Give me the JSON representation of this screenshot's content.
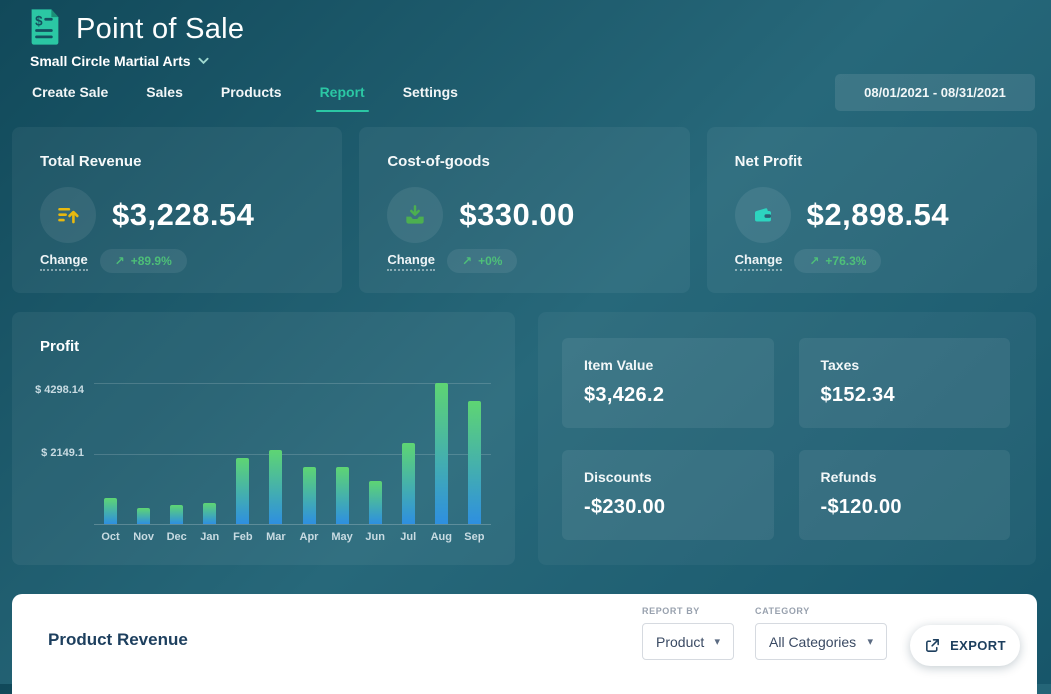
{
  "app": {
    "title": "Point of Sale",
    "organization": "Small Circle Martial Arts",
    "date_range": "08/01/2021 - 08/31/2021",
    "tabs": [
      {
        "label": "Create Sale",
        "active": false
      },
      {
        "label": "Sales",
        "active": false
      },
      {
        "label": "Products",
        "active": false
      },
      {
        "label": "Report",
        "active": true
      },
      {
        "label": "Settings",
        "active": false
      }
    ]
  },
  "metrics": [
    {
      "title": "Total Revenue",
      "value": "$3,228.54",
      "change_label": "Change",
      "trend_arrow": "↗",
      "change_badge": "+89.9%",
      "icon": "revenue-up-icon",
      "icon_color": "#e8b90f"
    },
    {
      "title": "Cost-of-goods",
      "value": "$330.00",
      "change_label": "Change",
      "trend_arrow": "↗",
      "change_badge": "+0%",
      "icon": "goods-in-icon",
      "icon_color": "#4caf50"
    },
    {
      "title": "Net Profit",
      "value": "$2,898.54",
      "change_label": "Change",
      "trend_arrow": "↗",
      "change_badge": "+76.3%",
      "icon": "wallet-icon",
      "icon_color": "#2dd4bf"
    }
  ],
  "chart_data": {
    "type": "bar",
    "title": "Profit",
    "categories": [
      "Oct",
      "Nov",
      "Dec",
      "Jan",
      "Feb",
      "Mar",
      "Apr",
      "May",
      "Jun",
      "Jul",
      "Aug",
      "Sep"
    ],
    "values": [
      780,
      480,
      570,
      630,
      2010,
      2250,
      1740,
      1740,
      1320,
      2460,
      4298.14,
      3750
    ],
    "y_tick_labels": [
      "$ 4298.14",
      "$ 2149.1"
    ],
    "y_tick_values": [
      4298.14,
      2149.1
    ],
    "ylim": [
      0,
      4298.14
    ],
    "grid": true,
    "legend": false,
    "bar_gradient_top": "#5ed573",
    "bar_gradient_bottom": "#2e8fe0"
  },
  "summary": [
    {
      "label": "Item Value",
      "value": "$3,426.2"
    },
    {
      "label": "Taxes",
      "value": "$152.34"
    },
    {
      "label": "Discounts",
      "value": "-$230.00"
    },
    {
      "label": "Refunds",
      "value": "-$120.00"
    }
  ],
  "product_revenue": {
    "title": "Product Revenue",
    "report_by": {
      "label": "REPORT BY",
      "value": "Product"
    },
    "category": {
      "label": "CATEGORY",
      "value": "All Categories"
    },
    "export_label": "EXPORT",
    "caret": "▾"
  },
  "colors": {
    "accent_teal": "#2bc7a4",
    "badge_green": "#50c878",
    "background_teal": "#1d5c6e",
    "panel_white": "#ffffff"
  }
}
